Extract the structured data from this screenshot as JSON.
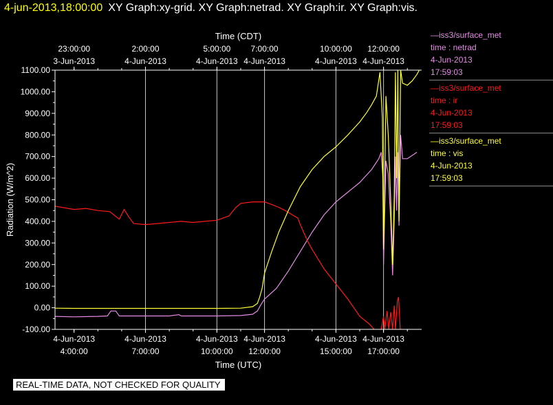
{
  "header": {
    "timestamp": "4-jun-2013,18:00:00",
    "title": "XY Graph:xy-grid.  XY Graph:netrad.  XY Graph:ir.  XY Graph:vis."
  },
  "banner": "REAL-TIME DATA, NOT CHECKED FOR QUALITY",
  "legend": [
    {
      "source": "—iss3/surface_met",
      "field": "time : netrad",
      "date": "4-Jun-2013",
      "time": "17:59:03",
      "color": "#e58be5"
    },
    {
      "source": "—iss3/surface_met",
      "field": "time : ir",
      "date": "4-Jun-2013",
      "time": "17:59:03",
      "color": "#ff1a1a"
    },
    {
      "source": "—iss3/surface_met",
      "field": "time : vis",
      "date": "4-Jun-2013",
      "time": "17:59:03",
      "color": "#ffff33"
    }
  ],
  "chart_data": {
    "type": "line",
    "ylabel": "Radiation (W/m^2)",
    "xlabel": "Time (UTC)",
    "x2label": "Time (CDT)",
    "ylim": [
      -100,
      1100
    ],
    "xlim": [
      3.2,
      18.6
    ],
    "yticks": [
      {
        "v": 1100,
        "label": "1100.00"
      },
      {
        "v": 1000,
        "label": "1000.00"
      },
      {
        "v": 900,
        "label": "900.00"
      },
      {
        "v": 800,
        "label": "800.00"
      },
      {
        "v": 700,
        "label": "700.00"
      },
      {
        "v": 600,
        "label": "600.00"
      },
      {
        "v": 500,
        "label": "500.00"
      },
      {
        "v": 400,
        "label": "400.00"
      },
      {
        "v": 300,
        "label": "300.00"
      },
      {
        "v": 200,
        "label": "200.00"
      },
      {
        "v": 100,
        "label": "100.00"
      },
      {
        "v": 0,
        "label": "0.00"
      },
      {
        "v": -100,
        "label": "-100.00"
      }
    ],
    "xticks_bottom": [
      {
        "v": 4,
        "l1": "4-Jun-2013",
        "l2": "4:00:00",
        "grid": false
      },
      {
        "v": 7,
        "l1": "4-Jun-2013",
        "l2": "7:00:00",
        "grid": true
      },
      {
        "v": 10,
        "l1": "4-Jun-2013",
        "l2": "10:00:00",
        "grid": true
      },
      {
        "v": 12,
        "l1": "4-Jun-2013",
        "l2": "12:00:00",
        "grid": true
      },
      {
        "v": 15,
        "l1": "4-Jun-2013",
        "l2": "15:00:00",
        "grid": true
      },
      {
        "v": 17,
        "l1": "4-Jun-2013",
        "l2": "17:00:00",
        "grid": true
      }
    ],
    "xticks_top": [
      {
        "v": 4,
        "l1": "23:00:00",
        "l2": "3-Jun-2013"
      },
      {
        "v": 7,
        "l1": "2:00:00",
        "l2": "4-Jun-2013"
      },
      {
        "v": 10,
        "l1": "5:00:00",
        "l2": "4-Jun-2013"
      },
      {
        "v": 12,
        "l1": "7:00:00",
        "l2": "4-Jun-2013"
      },
      {
        "v": 15,
        "l1": "10:00:00",
        "l2": "4-Jun-2013"
      },
      {
        "v": 17,
        "l1": "12:00:00",
        "l2": "4-Jun-2013"
      }
    ],
    "series": [
      {
        "key": "netrad",
        "color": "#e58be5",
        "points": [
          [
            3.2,
            -40
          ],
          [
            4.0,
            -42
          ],
          [
            5.0,
            -40
          ],
          [
            5.4,
            -38
          ],
          [
            5.55,
            -15
          ],
          [
            5.75,
            -15
          ],
          [
            5.9,
            -38
          ],
          [
            7.0,
            -38
          ],
          [
            8.0,
            -38
          ],
          [
            8.4,
            -32
          ],
          [
            8.5,
            -38
          ],
          [
            10.0,
            -38
          ],
          [
            11.0,
            -36
          ],
          [
            11.5,
            -30
          ],
          [
            11.7,
            -15
          ],
          [
            11.85,
            15
          ],
          [
            12.0,
            40
          ],
          [
            12.5,
            90
          ],
          [
            13.0,
            170
          ],
          [
            13.5,
            260
          ],
          [
            14.0,
            350
          ],
          [
            14.5,
            430
          ],
          [
            15.0,
            490
          ],
          [
            15.5,
            535
          ],
          [
            16.0,
            580
          ],
          [
            16.5,
            640
          ],
          [
            16.8,
            690
          ],
          [
            16.9,
            720
          ],
          [
            16.97,
            600
          ],
          [
            17.0,
            200
          ],
          [
            17.05,
            450
          ],
          [
            17.1,
            680
          ],
          [
            17.2,
            620
          ],
          [
            17.3,
            400
          ],
          [
            17.38,
            150
          ],
          [
            17.45,
            400
          ],
          [
            17.5,
            700
          ],
          [
            17.55,
            450
          ],
          [
            17.6,
            720
          ],
          [
            17.65,
            380
          ],
          [
            17.72,
            800
          ],
          [
            17.8,
            690
          ],
          [
            18.0,
            690
          ],
          [
            18.2,
            705
          ],
          [
            18.4,
            720
          ]
        ]
      },
      {
        "key": "ir",
        "color": "#ff1a1a",
        "points": [
          [
            3.2,
            470
          ],
          [
            4.0,
            455
          ],
          [
            4.5,
            460
          ],
          [
            5.0,
            450
          ],
          [
            5.5,
            445
          ],
          [
            5.9,
            410
          ],
          [
            6.1,
            455
          ],
          [
            6.3,
            420
          ],
          [
            6.5,
            390
          ],
          [
            7.0,
            385
          ],
          [
            7.5,
            390
          ],
          [
            8.0,
            395
          ],
          [
            8.5,
            400
          ],
          [
            9.0,
            395
          ],
          [
            9.5,
            400
          ],
          [
            10.0,
            405
          ],
          [
            10.5,
            425
          ],
          [
            10.8,
            465
          ],
          [
            11.0,
            483
          ],
          [
            11.5,
            490
          ],
          [
            12.0,
            490
          ],
          [
            12.3,
            478
          ],
          [
            12.6,
            465
          ],
          [
            12.9,
            448
          ],
          [
            13.2,
            428
          ],
          [
            13.4,
            415
          ],
          [
            13.5,
            385
          ],
          [
            13.8,
            310
          ],
          [
            14.0,
            270
          ],
          [
            14.5,
            180
          ],
          [
            15.0,
            110
          ],
          [
            15.5,
            40
          ],
          [
            16.0,
            -40
          ],
          [
            16.4,
            -75
          ],
          [
            16.6,
            -100
          ]
        ]
      },
      {
        "key": "ir_spikes",
        "color": "#ff1a1a",
        "points": [
          [
            16.9,
            -100
          ],
          [
            17.0,
            -40
          ],
          [
            17.05,
            -100
          ],
          [
            17.15,
            -15
          ],
          [
            17.22,
            -100
          ],
          [
            17.3,
            -20
          ],
          [
            17.38,
            -100
          ],
          [
            17.45,
            10
          ],
          [
            17.5,
            -100
          ],
          [
            17.58,
            30
          ],
          [
            17.63,
            50
          ],
          [
            17.7,
            -100
          ]
        ]
      },
      {
        "key": "vis",
        "color": "#ffff33",
        "points": [
          [
            3.2,
            -2
          ],
          [
            4.0,
            -3
          ],
          [
            5.0,
            -3
          ],
          [
            6.0,
            -3
          ],
          [
            7.0,
            -3
          ],
          [
            8.0,
            -3
          ],
          [
            9.0,
            -3
          ],
          [
            10.0,
            -3
          ],
          [
            11.0,
            -2
          ],
          [
            11.5,
            5
          ],
          [
            11.7,
            20
          ],
          [
            11.8,
            50
          ],
          [
            11.9,
            90
          ],
          [
            12.0,
            160
          ],
          [
            12.3,
            260
          ],
          [
            12.6,
            350
          ],
          [
            13.0,
            450
          ],
          [
            13.5,
            560
          ],
          [
            14.0,
            640
          ],
          [
            14.5,
            700
          ],
          [
            15.0,
            745
          ],
          [
            15.5,
            800
          ],
          [
            16.0,
            860
          ],
          [
            16.3,
            905
          ],
          [
            16.5,
            940
          ],
          [
            16.7,
            980
          ],
          [
            16.85,
            1090
          ],
          [
            16.95,
            880
          ],
          [
            17.0,
            270
          ],
          [
            17.05,
            580
          ],
          [
            17.1,
            980
          ],
          [
            17.2,
            800
          ],
          [
            17.3,
            500
          ],
          [
            17.38,
            200
          ],
          [
            17.45,
            520
          ],
          [
            17.5,
            1090
          ],
          [
            17.55,
            600
          ],
          [
            17.6,
            1100
          ],
          [
            17.65,
            400
          ],
          [
            17.72,
            1100
          ],
          [
            17.8,
            1040
          ],
          [
            18.0,
            1030
          ],
          [
            18.2,
            1050
          ],
          [
            18.4,
            1080
          ],
          [
            18.5,
            1100
          ]
        ]
      }
    ]
  }
}
